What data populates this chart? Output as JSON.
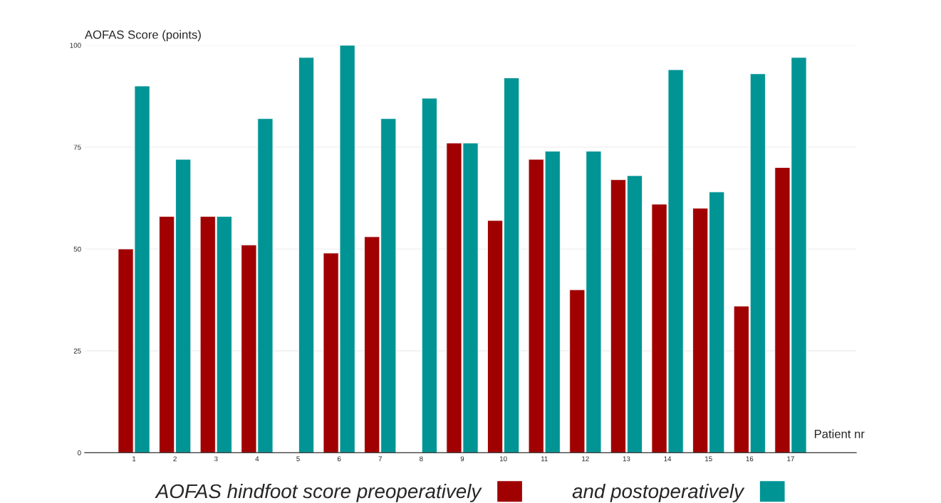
{
  "chart_data": {
    "type": "bar",
    "ylabel": "AOFAS Score (points)",
    "xlabel": "Patient nr",
    "categories": [
      "1",
      "2",
      "3",
      "4",
      "5",
      "6",
      "7",
      "8",
      "9",
      "10",
      "11",
      "12",
      "13",
      "14",
      "15",
      "16",
      "17"
    ],
    "series": [
      {
        "name": "AOFAS hindfoot score preoperatively",
        "color": "#a00000",
        "values": [
          50,
          58,
          58,
          51,
          null,
          49,
          53,
          null,
          76,
          57,
          72,
          40,
          67,
          61,
          60,
          36,
          70
        ]
      },
      {
        "name": "and postoperatively",
        "color": "#009494",
        "values": [
          90,
          72,
          58,
          82,
          97,
          100,
          82,
          87,
          76,
          92,
          74,
          74,
          68,
          94,
          64,
          93,
          97
        ]
      }
    ],
    "ylim": [
      0,
      100
    ],
    "yticks": [
      0,
      25,
      50,
      75,
      100
    ],
    "grid": "y",
    "legend": "bottom"
  }
}
